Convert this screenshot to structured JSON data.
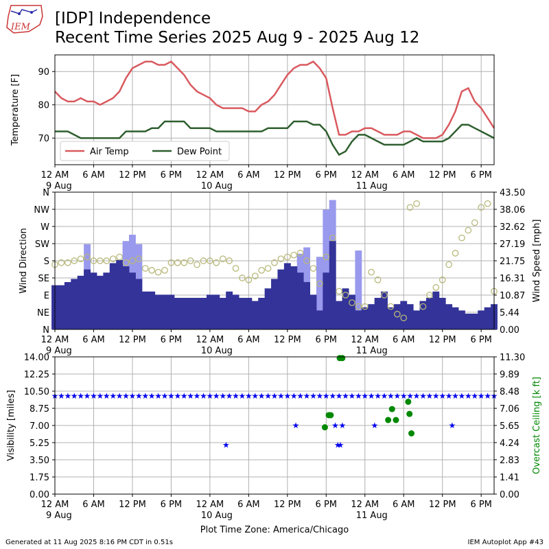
{
  "header": {
    "title_line1": "[IDP] Independence",
    "title_line2": "Recent Time Series 2025 Aug 9 - 2025 Aug 12",
    "logo_text": "IEM"
  },
  "footer": {
    "generated": "Generated at 11 Aug 2025 8:16 PM CDT in 0.51s",
    "app": "IEM Autoplot App #43"
  },
  "colors": {
    "air_temp": "#d9595e",
    "dew_point": "#2e5e2e",
    "wind_bar": "#333399",
    "gust_bar": "#9999ee",
    "wind_dir": "#b8b87a",
    "visibility": "#0000ee",
    "ceiling": "#008800",
    "ceiling_label": "#008800"
  },
  "chart_data": [
    {
      "type": "line",
      "ylabel": "Temperature [F]",
      "x_unit": "hours since 2025-08-09 00:00",
      "x_ticks": [
        "12 AM",
        "6 AM",
        "12 PM",
        "6 PM",
        "12 AM",
        "6 AM",
        "12 PM",
        "6 PM",
        "12 AM",
        "6 AM",
        "12 PM",
        "6 PM"
      ],
      "x_date_labels": [
        "9 Aug",
        "10 Aug",
        "11 Aug"
      ],
      "y_ticks": [
        "70",
        "80",
        "90"
      ],
      "ylim": [
        62,
        95
      ],
      "xlim": [
        0,
        68
      ],
      "grid": true,
      "legend": "lower-left",
      "series": [
        {
          "name": "Air Temp",
          "x": [
            0,
            1,
            2,
            3,
            4,
            5,
            6,
            7,
            8,
            9,
            10,
            11,
            12,
            13,
            14,
            15,
            16,
            17,
            18,
            19,
            20,
            21,
            22,
            23,
            24,
            25,
            26,
            27,
            28,
            29,
            30,
            31,
            32,
            33,
            34,
            35,
            36,
            37,
            38,
            39,
            40,
            41,
            42,
            43,
            44,
            45,
            46,
            47,
            48,
            49,
            50,
            51,
            52,
            53,
            54,
            55,
            56,
            57,
            58,
            59,
            60,
            61,
            62,
            63,
            64,
            65,
            66,
            67,
            68
          ],
          "y": [
            84,
            82,
            81,
            81,
            82,
            81,
            81,
            80,
            81,
            82,
            84,
            88,
            91,
            92,
            93,
            93,
            92,
            92,
            93,
            91,
            89,
            86,
            84,
            83,
            82,
            80,
            79,
            79,
            79,
            79,
            78,
            78,
            80,
            81,
            83,
            86,
            89,
            91,
            92,
            92,
            93,
            91,
            88,
            79,
            71,
            71,
            72,
            72,
            73,
            73,
            72,
            71,
            71,
            71,
            72,
            72,
            71,
            70,
            70,
            70,
            71,
            74,
            78,
            84,
            85,
            81,
            79,
            76,
            73
          ]
        },
        {
          "name": "Dew Point",
          "x": [
            0,
            1,
            2,
            3,
            4,
            5,
            6,
            7,
            8,
            9,
            10,
            11,
            12,
            13,
            14,
            15,
            16,
            17,
            18,
            19,
            20,
            21,
            22,
            23,
            24,
            25,
            26,
            27,
            28,
            29,
            30,
            31,
            32,
            33,
            34,
            35,
            36,
            37,
            38,
            39,
            40,
            41,
            42,
            43,
            44,
            45,
            46,
            47,
            48,
            49,
            50,
            51,
            52,
            53,
            54,
            55,
            56,
            57,
            58,
            59,
            60,
            61,
            62,
            63,
            64,
            65,
            66,
            67,
            68
          ],
          "y": [
            72,
            72,
            72,
            71,
            70,
            70,
            70,
            70,
            70,
            70,
            70,
            72,
            72,
            72,
            72,
            73,
            73,
            75,
            75,
            75,
            75,
            73,
            73,
            73,
            73,
            72,
            72,
            72,
            72,
            72,
            72,
            72,
            72,
            73,
            73,
            73,
            73,
            75,
            75,
            75,
            74,
            74,
            72,
            68,
            65,
            66,
            69,
            71,
            71,
            70,
            69,
            68,
            68,
            68,
            68,
            69,
            70,
            69,
            69,
            69,
            69,
            70,
            72,
            74,
            74,
            73,
            72,
            71,
            70
          ]
        }
      ]
    },
    {
      "type": "bar",
      "ylabel": "Wind Direction",
      "y2label": "Wind Speed [mph]",
      "x_ticks": [
        "12 AM",
        "6 AM",
        "12 PM",
        "6 PM",
        "12 AM",
        "6 AM",
        "12 PM",
        "6 PM",
        "12 AM",
        "6 AM",
        "12 PM",
        "6 PM"
      ],
      "x_date_labels": [
        "9 Aug",
        "10 Aug",
        "11 Aug"
      ],
      "y_ticks": [
        "N",
        "NE",
        "E",
        "SE",
        "S",
        "SW",
        "W",
        "NW",
        "N"
      ],
      "y_range_deg": [
        0,
        360
      ],
      "y2_ticks": [
        "0.00",
        "5.44",
        "10.87",
        "16.31",
        "21.75",
        "27.19",
        "32.62",
        "38.06",
        "43.50"
      ],
      "y2lim": [
        0,
        43.5
      ],
      "xlim": [
        0,
        68
      ],
      "grid": true,
      "series": [
        {
          "name": "wind_speed",
          "x": [
            0,
            1,
            2,
            3,
            4,
            5,
            6,
            7,
            8,
            9,
            10,
            11,
            12,
            13,
            14,
            15,
            16,
            17,
            18,
            19,
            20,
            21,
            22,
            23,
            24,
            25,
            26,
            27,
            28,
            29,
            30,
            31,
            32,
            33,
            34,
            35,
            36,
            37,
            38,
            39,
            40,
            41,
            42,
            43,
            44,
            45,
            46,
            47,
            48,
            49,
            50,
            51,
            52,
            53,
            54,
            55,
            56,
            57,
            58,
            59,
            60,
            61,
            62,
            63,
            64,
            65,
            66,
            67,
            68
          ],
          "values": [
            14,
            14,
            15,
            16,
            17,
            19,
            18,
            17,
            18,
            21,
            22,
            20,
            18,
            16,
            12,
            12,
            11,
            11,
            11,
            10,
            10,
            10,
            10,
            10,
            11,
            11,
            10,
            12,
            11,
            10,
            10,
            9,
            10,
            13,
            16,
            19,
            21,
            20,
            18,
            15,
            11,
            6,
            18,
            28,
            9,
            13,
            11,
            6,
            7,
            8,
            10,
            12,
            7,
            8,
            9,
            8,
            6,
            9,
            10,
            12,
            10,
            8,
            7,
            6,
            5,
            5,
            6,
            7,
            8
          ]
        },
        {
          "name": "wind_gust",
          "x": [
            5,
            11,
            12,
            13,
            38,
            39,
            41,
            42,
            43,
            47
          ],
          "values": [
            27,
            28,
            30,
            27,
            24,
            26,
            23,
            38,
            41,
            25
          ]
        },
        {
          "name": "wind_direction_deg",
          "x": [
            0,
            1,
            2,
            3,
            4,
            5,
            6,
            7,
            8,
            9,
            10,
            11,
            12,
            13,
            14,
            15,
            16,
            17,
            18,
            19,
            20,
            21,
            22,
            23,
            24,
            25,
            26,
            27,
            28,
            29,
            30,
            31,
            32,
            33,
            34,
            35,
            36,
            37,
            38,
            39,
            40,
            41,
            42,
            43,
            44,
            45,
            46,
            47,
            48,
            49,
            50,
            51,
            52,
            53,
            54,
            55,
            56,
            57,
            58,
            59,
            60,
            61,
            62,
            63,
            64,
            65,
            66,
            67,
            68
          ],
          "values": [
            170,
            175,
            175,
            180,
            185,
            190,
            180,
            180,
            180,
            185,
            190,
            175,
            180,
            185,
            160,
            155,
            150,
            155,
            175,
            175,
            175,
            180,
            170,
            180,
            180,
            175,
            185,
            180,
            160,
            135,
            130,
            140,
            155,
            160,
            175,
            185,
            190,
            195,
            200,
            180,
            160,
            120,
            190,
            240,
            100,
            90,
            70,
            60,
            60,
            150,
            130,
            90,
            60,
            40,
            30,
            320,
            330,
            60,
            90,
            110,
            130,
            170,
            200,
            240,
            260,
            280,
            320,
            330,
            100
          ]
        }
      ]
    },
    {
      "type": "scatter",
      "ylabel": "Visibility [miles]",
      "y2label": "Overcast Ceiling [k ft]",
      "xlabel": "Plot Time Zone: America/Chicago",
      "x_ticks": [
        "12 AM",
        "6 AM",
        "12 PM",
        "6 PM",
        "12 AM",
        "6 AM",
        "12 PM",
        "6 PM",
        "12 AM",
        "6 AM",
        "12 PM",
        "6 PM"
      ],
      "x_date_labels": [
        "9 Aug",
        "10 Aug",
        "11 Aug"
      ],
      "y_ticks": [
        "0.00",
        "1.75",
        "3.50",
        "5.25",
        "7.00",
        "8.75",
        "10.50",
        "12.25",
        "14.00"
      ],
      "ylim": [
        0,
        14
      ],
      "y2_ticks": [
        "0.00",
        "1.41",
        "2.83",
        "4.24",
        "5.65",
        "7.06",
        "8.48",
        "9.89",
        "11.30"
      ],
      "y2lim": [
        0,
        11.3
      ],
      "xlim": [
        0,
        68
      ],
      "grid": true,
      "series": [
        {
          "name": "visibility",
          "x": [
            0,
            1,
            2,
            3,
            4,
            5,
            6,
            7,
            8,
            9,
            10,
            11,
            12,
            13,
            14,
            15,
            16,
            17,
            18,
            19,
            20,
            21,
            22,
            23,
            24,
            25,
            26,
            27,
            28,
            29,
            30,
            31,
            32,
            33,
            34,
            35,
            36,
            37,
            38,
            39,
            40,
            41,
            42,
            43,
            44,
            45,
            46,
            47,
            48,
            49,
            50,
            51,
            52,
            53,
            54,
            55,
            56,
            57,
            58,
            59,
            60,
            61,
            62,
            63,
            64,
            65,
            66,
            67,
            68,
            26.5,
            37.3,
            43.4,
            43.8,
            44.2,
            44.5,
            49.5,
            61.5
          ],
          "values": [
            10,
            10,
            10,
            10,
            10,
            10,
            10,
            10,
            10,
            10,
            10,
            10,
            10,
            10,
            10,
            10,
            10,
            10,
            10,
            10,
            10,
            10,
            10,
            10,
            10,
            10,
            10,
            10,
            10,
            10,
            10,
            10,
            10,
            10,
            10,
            10,
            10,
            10,
            10,
            10,
            10,
            10,
            10,
            10,
            10,
            10,
            10,
            10,
            10,
            10,
            10,
            10,
            10,
            10,
            10,
            10,
            10,
            10,
            10,
            10,
            10,
            10,
            10,
            10,
            10,
            10,
            10,
            10,
            10,
            5,
            7,
            7,
            5,
            5,
            7,
            7,
            7
          ]
        },
        {
          "name": "overcast_ceiling",
          "x": [
            41.8,
            42.4,
            42.7,
            44.1,
            44.5,
            51.6,
            52.2,
            52.8,
            54.7,
            54.9,
            55.2
          ],
          "values": [
            5.5,
            6.5,
            6.5,
            11.2,
            11.2,
            6.1,
            7.0,
            6.1,
            7.6,
            6.6,
            5.0
          ]
        }
      ]
    }
  ]
}
